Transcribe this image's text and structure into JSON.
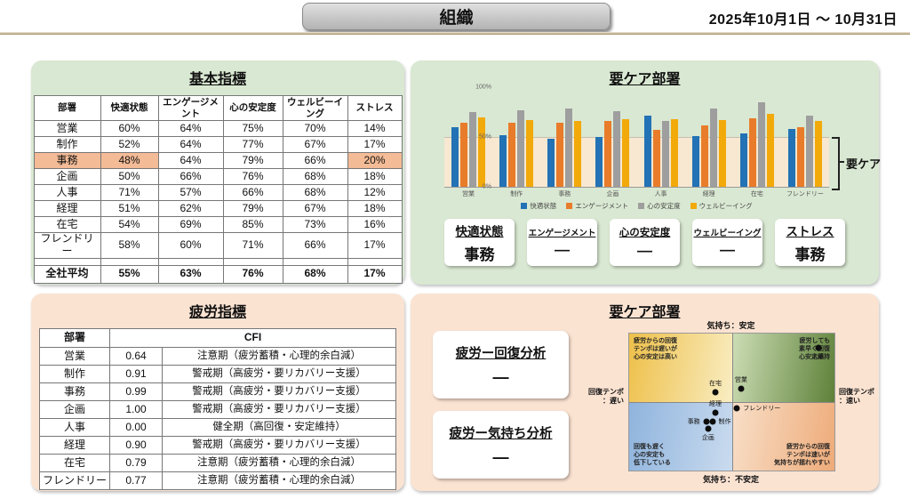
{
  "header": {
    "title": "組織",
    "date_range": "2025年10月1日 〜 10月31日"
  },
  "colors": {
    "panel_green": "#d9e8d2",
    "panel_peach": "#fbe3d2",
    "highlight_cell": "#f3bb96",
    "care_zone": "#f8e8d1",
    "series_comfort": "#2272b5",
    "series_engagement": "#e87c2b",
    "series_stability": "#9e9e9e",
    "series_wellbeing": "#f2a90a"
  },
  "basic_panel": {
    "title": "基本指標",
    "columns": [
      "部署",
      "快適状態",
      "エンゲージメント",
      "心の安定度",
      "ウェルビーイング",
      "ストレス"
    ],
    "rows": [
      [
        "営業",
        "60%",
        "64%",
        "75%",
        "70%",
        "14%"
      ],
      [
        "制作",
        "52%",
        "64%",
        "77%",
        "67%",
        "17%"
      ],
      [
        "事務",
        "48%",
        "64%",
        "79%",
        "66%",
        "20%"
      ],
      [
        "企画",
        "50%",
        "66%",
        "76%",
        "68%",
        "18%"
      ],
      [
        "人事",
        "71%",
        "57%",
        "66%",
        "68%",
        "12%"
      ],
      [
        "経理",
        "51%",
        "62%",
        "79%",
        "67%",
        "18%"
      ],
      [
        "在宅",
        "54%",
        "69%",
        "85%",
        "73%",
        "16%"
      ],
      [
        "フレンドリー",
        "58%",
        "60%",
        "71%",
        "66%",
        "17%"
      ]
    ],
    "average_row": [
      "全社平均",
      "55%",
      "63%",
      "76%",
      "68%",
      "17%"
    ],
    "highlight": {
      "department": "事務",
      "columns": [
        0,
        1,
        5
      ]
    }
  },
  "care_panel": {
    "title": "要ケア部署",
    "summary_boxes": [
      {
        "label": "快適状態",
        "value": "事務"
      },
      {
        "label": "エンゲージメント",
        "value": "—"
      },
      {
        "label": "心の安定度",
        "value": "—"
      },
      {
        "label": "ウェルビーイング",
        "value": "—"
      },
      {
        "label": "ストレス",
        "value": "事務"
      }
    ]
  },
  "fatigue_panel": {
    "title": "疲労指標",
    "columns": [
      "部署",
      "CFI"
    ],
    "rows": [
      [
        "営業",
        "0.64",
        "注意期（疲労蓄積・心理的余白減）"
      ],
      [
        "制作",
        "0.91",
        "警戒期（高疲労・要リカバリー支援）"
      ],
      [
        "事務",
        "0.99",
        "警戒期（高疲労・要リカバリー支援）"
      ],
      [
        "企画",
        "1.00",
        "警戒期（高疲労・要リカバリー支援）"
      ],
      [
        "人事",
        "0.00",
        "健全期（高回復・安定維持）"
      ],
      [
        "経理",
        "0.90",
        "警戒期（高疲労・要リカバリー支援）"
      ],
      [
        "在宅",
        "0.79",
        "注意期（疲労蓄積・心理的余白減）"
      ],
      [
        "フレンドリー",
        "0.77",
        "注意期（疲労蓄積・心理的余白減）"
      ]
    ]
  },
  "quadrant_panel": {
    "title": "要ケア部署",
    "analysis_boxes": [
      {
        "label": "疲労ー回復分析",
        "value": "—"
      },
      {
        "label": "疲労ー気持ち分析",
        "value": "—"
      }
    ]
  },
  "chart_data": [
    {
      "type": "bar",
      "title": "要ケア部署",
      "categories": [
        "営業",
        "制作",
        "事務",
        "企画",
        "人事",
        "経理",
        "在宅",
        "フレンドリー"
      ],
      "series": [
        {
          "name": "快適状態",
          "color": "#2272b5",
          "values": [
            60,
            52,
            48,
            50,
            71,
            51,
            54,
            58
          ]
        },
        {
          "name": "エンゲージメント",
          "color": "#e87c2b",
          "values": [
            64,
            64,
            64,
            66,
            57,
            62,
            69,
            60
          ]
        },
        {
          "name": "心の安定度",
          "color": "#9e9e9e",
          "values": [
            75,
            77,
            79,
            76,
            66,
            79,
            85,
            71
          ]
        },
        {
          "name": "ウェルビーイング",
          "color": "#f2a90a",
          "values": [
            70,
            67,
            66,
            68,
            68,
            67,
            73,
            66
          ]
        }
      ],
      "ylim": [
        0,
        100
      ],
      "yticks": [
        "100%",
        "50%",
        "0%"
      ],
      "grid": "single line at 50%",
      "legend_position": "bottom",
      "care_zone_max": 50,
      "care_label": "要ケア"
    },
    {
      "type": "scatter",
      "title": "要ケア部署",
      "axis_labels": {
        "top": "気持ち：安定",
        "bottom": "気持ち：不安定",
        "left": "回復テンポ\n：遅い",
        "right": "回復テンポ\n：速い"
      },
      "quadrant_texts": {
        "tl": "疲労からの回復\nテンポは遅いが\n心の安定は高い",
        "tr": "疲労しても\n素早く回復\n心安定維持",
        "bl": "回復も遅く\n心の安定も\n低下している",
        "br": "疲労からの回復\nテンポは速いが\n気持ちが揺れやすい"
      },
      "points": [
        {
          "name": "在宅",
          "x": 42,
          "y": 43,
          "label_pos": "top"
        },
        {
          "name": "営業",
          "x": 54.5,
          "y": 40,
          "label_pos": "top"
        },
        {
          "name": "人事",
          "x": 92,
          "y": 10.5,
          "label_pos": "bottom"
        },
        {
          "name": "フレンドリー",
          "x": 52.5,
          "y": 54.5,
          "label_pos": "right"
        },
        {
          "name": "経理",
          "x": 42,
          "y": 57.5,
          "label_pos": "top"
        },
        {
          "name": "制作",
          "x": 40.5,
          "y": 64,
          "label_pos": "right"
        },
        {
          "name": "事務",
          "x": 37.5,
          "y": 64.5,
          "label_pos": "left"
        },
        {
          "name": "企画",
          "x": 38.5,
          "y": 69.5,
          "label_pos": "bottom"
        }
      ]
    }
  ]
}
